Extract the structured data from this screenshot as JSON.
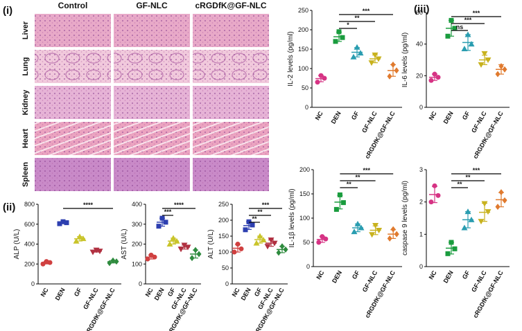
{
  "panels": [
    "(i)",
    "(ii)",
    "(iii)"
  ],
  "histology": {
    "columns": [
      "Control",
      "GF-NLC",
      "cRGDfK@GF-NLC"
    ],
    "rows": [
      "Liver",
      "Lung",
      "Kidney",
      "Heart",
      "Spleen"
    ]
  },
  "chart_data": [
    {
      "type": "dotplot",
      "ylabel": "ALP (U/L)",
      "categories": [
        "NC",
        "DEN",
        "GF",
        "GF-NLC",
        "cRGDfK@GF-NLC"
      ],
      "values": [
        213,
        615,
        453,
        330,
        223
      ],
      "errors": [
        12,
        10,
        22,
        10,
        12
      ],
      "points": [
        [
          200,
          215,
          225
        ],
        [
          605,
          615,
          625
        ],
        [
          430,
          455,
          475
        ],
        [
          320,
          330,
          340
        ],
        [
          210,
          225,
          235
        ]
      ],
      "colors": [
        "#d04040",
        "#2d3fb0",
        "#c9c42a",
        "#b03040",
        "#2e8b3e"
      ],
      "ylim": [
        0,
        800
      ],
      "yticks": [
        0,
        200,
        400,
        600,
        800
      ],
      "annotations": [
        {
          "text": "****",
          "from": "DEN",
          "to": "cRGDfK@GF-NLC"
        }
      ]
    },
    {
      "type": "dotplot",
      "ylabel": "AST (U/L)",
      "categories": [
        "NC",
        "DEN",
        "GF",
        "GF-NLC",
        "cRGDfK@GF-NLC"
      ],
      "values": [
        135,
        310,
        215,
        185,
        150
      ],
      "errors": [
        10,
        20,
        15,
        10,
        20
      ],
      "points": [
        [
          125,
          135,
          145
        ],
        [
          290,
          310,
          330
        ],
        [
          200,
          215,
          230
        ],
        [
          175,
          185,
          195
        ],
        [
          130,
          150,
          170
        ]
      ],
      "colors": [
        "#d04040",
        "#2d3fb0",
        "#c9c42a",
        "#b03040",
        "#2e8b3e"
      ],
      "ylim": [
        0,
        400
      ],
      "yticks": [
        0,
        100,
        200,
        300,
        400
      ],
      "annotations": [
        {
          "text": "***",
          "from": "DEN",
          "to": "GF"
        },
        {
          "text": "****",
          "from": "DEN",
          "to": "cRGDfK@GF-NLC"
        }
      ]
    },
    {
      "type": "dotplot",
      "ylabel": "ALT (U/L)",
      "categories": [
        "NC",
        "DEN",
        "GF",
        "GF-NLC",
        "cRGDfK@GF-NLC"
      ],
      "values": [
        112,
        183,
        139,
        128,
        108
      ],
      "errors": [
        12,
        12,
        11,
        10,
        10
      ],
      "points": [
        [
          100,
          110,
          125
        ],
        [
          170,
          185,
          195
        ],
        [
          128,
          138,
          150
        ],
        [
          118,
          128,
          138
        ],
        [
          98,
          108,
          118
        ]
      ],
      "colors": [
        "#d04040",
        "#2d3fb0",
        "#c9c42a",
        "#b03040",
        "#2e8b3e"
      ],
      "ylim": [
        0,
        250
      ],
      "yticks": [
        0,
        50,
        100,
        150,
        200,
        250
      ],
      "annotations": [
        {
          "text": "**",
          "from": "DEN",
          "to": "GF"
        },
        {
          "text": "**",
          "from": "DEN",
          "to": "GF-NLC"
        },
        {
          "text": "***",
          "from": "DEN",
          "to": "cRGDfK@GF-NLC"
        }
      ]
    },
    {
      "type": "dotplot",
      "ylabel": "IL-2 levels (pg/ml)",
      "categories": [
        "NC",
        "DEN",
        "GF",
        "GF-NLC",
        "cRGDfK@GF-NLC"
      ],
      "values": [
        74,
        182,
        142,
        125,
        95
      ],
      "errors": [
        8,
        12,
        12,
        10,
        15
      ],
      "points": [
        [
          65,
          75,
          82
        ],
        [
          170,
          180,
          195
        ],
        [
          130,
          140,
          155
        ],
        [
          115,
          125,
          135
        ],
        [
          80,
          95,
          110
        ]
      ],
      "colors": [
        "#d63384",
        "#1a9c3e",
        "#2a9db0",
        "#c8b21e",
        "#e07a2e"
      ],
      "ylim": [
        0,
        250
      ],
      "yticks": [
        0,
        50,
        100,
        150,
        200,
        250
      ],
      "annotations": [
        {
          "text": "*",
          "from": "DEN",
          "to": "GF"
        },
        {
          "text": "**",
          "from": "DEN",
          "to": "GF-NLC"
        },
        {
          "text": "***",
          "from": "DEN",
          "to": "cRGDfK@GF-NLC"
        }
      ]
    },
    {
      "type": "dotplot",
      "ylabel": "IL-6 levels (pg/ml)",
      "categories": [
        "NC",
        "DEN",
        "GF",
        "GF-NLC",
        "cRGDfK@GF-NLC"
      ],
      "values": [
        19,
        50,
        41,
        30,
        24
      ],
      "errors": [
        2,
        5,
        5,
        3,
        3
      ],
      "points": [
        [
          17,
          19,
          21
        ],
        [
          45,
          50,
          55
        ],
        [
          37,
          40,
          46
        ],
        [
          27,
          30,
          34
        ],
        [
          21,
          24,
          26
        ]
      ],
      "colors": [
        "#d63384",
        "#1a9c3e",
        "#2a9db0",
        "#c8b21e",
        "#e07a2e"
      ],
      "ylim": [
        0,
        60
      ],
      "yticks": [
        0,
        20,
        40,
        60
      ],
      "annotations": [
        {
          "text": "ns",
          "from": "DEN",
          "to": "GF"
        },
        {
          "text": "***",
          "from": "DEN",
          "to": "GF-NLC"
        },
        {
          "text": "***",
          "from": "DEN",
          "to": "cRGDfK@GF-NLC"
        }
      ]
    },
    {
      "type": "dotplot",
      "ylabel": "IL-1β levels (pg/ml)",
      "categories": [
        "NC",
        "DEN",
        "GF",
        "GF-NLC",
        "cRGDfK@GF-NLC"
      ],
      "values": [
        56,
        133,
        80,
        75,
        67
      ],
      "errors": [
        6,
        14,
        8,
        9,
        9
      ],
      "points": [
        [
          50,
          57,
          62
        ],
        [
          118,
          132,
          148
        ],
        [
          72,
          80,
          88
        ],
        [
          66,
          75,
          85
        ],
        [
          58,
          67,
          77
        ]
      ],
      "colors": [
        "#d63384",
        "#1a9c3e",
        "#2a9db0",
        "#c8b21e",
        "#e07a2e"
      ],
      "ylim": [
        0,
        200
      ],
      "yticks": [
        0,
        50,
        100,
        150,
        200
      ],
      "annotations": [
        {
          "text": "**",
          "from": "DEN",
          "to": "GF"
        },
        {
          "text": "**",
          "from": "DEN",
          "to": "GF-NLC"
        },
        {
          "text": "***",
          "from": "DEN",
          "to": "cRGDfK@GF-NLC"
        }
      ]
    },
    {
      "type": "dotplot",
      "ylabel": "caspase 9 levels (pg/ml)",
      "categories": [
        "NC",
        "DEN",
        "GF",
        "GF-NLC",
        "cRGDfK@GF-NLC"
      ],
      "values": [
        2.23,
        0.57,
        1.45,
        1.68,
        2.07
      ],
      "errors": [
        0.25,
        0.18,
        0.25,
        0.28,
        0.22
      ],
      "points": [
        [
          2,
          2.2,
          2.5
        ],
        [
          0.4,
          0.55,
          0.75
        ],
        [
          1.2,
          1.45,
          1.7
        ],
        [
          1.4,
          1.7,
          1.95
        ],
        [
          1.85,
          2.05,
          2.3
        ]
      ],
      "colors": [
        "#d63384",
        "#1a9c3e",
        "#2a9db0",
        "#c8b21e",
        "#e07a2e"
      ],
      "ylim": [
        0,
        3
      ],
      "yticks": [
        0,
        1,
        2,
        3
      ],
      "annotations": [
        {
          "text": "**",
          "from": "DEN",
          "to": "GF"
        },
        {
          "text": "**",
          "from": "DEN",
          "to": "GF-NLC"
        },
        {
          "text": "***",
          "from": "DEN",
          "to": "cRGDfK@GF-NLC"
        }
      ]
    }
  ]
}
